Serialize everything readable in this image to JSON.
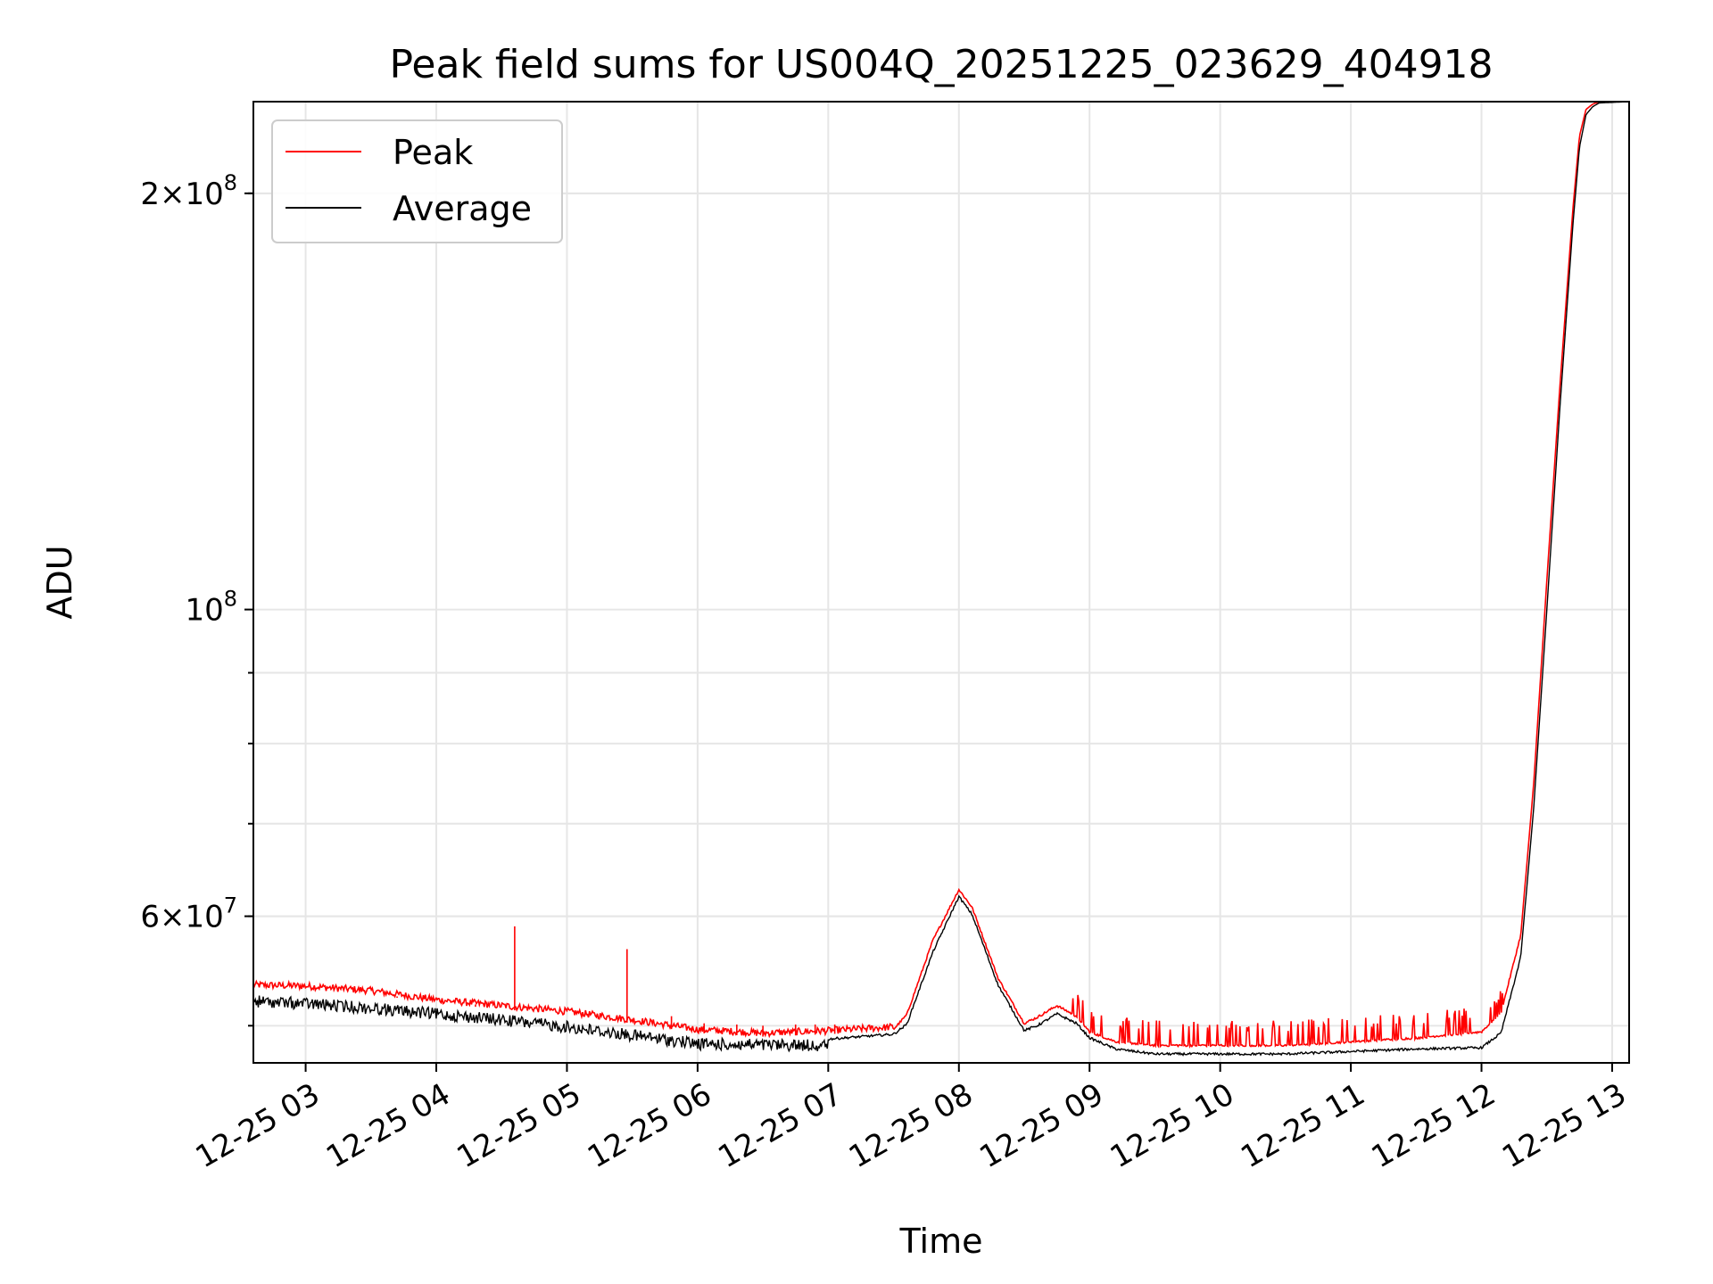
{
  "chart_data": {
    "type": "line",
    "title": "Peak field sums for US004Q_20251225_023629_404918",
    "xlabel": "Time",
    "ylabel": "ADU",
    "yscale": "log",
    "ylim": [
      47000000,
      233000000
    ],
    "xlim": [
      2.6,
      13.13
    ],
    "grid": true,
    "legend_position": "upper-left",
    "x_ticks": [
      {
        "value": 3,
        "label": "12-25 03"
      },
      {
        "value": 4,
        "label": "12-25 04"
      },
      {
        "value": 5,
        "label": "12-25 05"
      },
      {
        "value": 6,
        "label": "12-25 06"
      },
      {
        "value": 7,
        "label": "12-25 07"
      },
      {
        "value": 8,
        "label": "12-25 08"
      },
      {
        "value": 9,
        "label": "12-25 09"
      },
      {
        "value": 10,
        "label": "12-25 10"
      },
      {
        "value": 11,
        "label": "12-25 11"
      },
      {
        "value": 12,
        "label": "12-25 12"
      },
      {
        "value": 13,
        "label": "12-25 13"
      }
    ],
    "y_major_ticks": [
      {
        "value": 60000000,
        "base": "6×10",
        "exp": "7"
      },
      {
        "value": 100000000,
        "base": "10",
        "exp": "8"
      },
      {
        "value": 200000000,
        "base": "2×10",
        "exp": "8"
      }
    ],
    "y_minor_ticks": [
      50000000,
      60000000,
      70000000,
      80000000,
      90000000,
      200000000
    ],
    "series": [
      {
        "name": "Peak",
        "color": "#ff0000",
        "x": [
          2.6,
          3.0,
          3.5,
          4.0,
          4.5,
          5.0,
          5.5,
          6.0,
          6.5,
          7.0,
          7.5,
          7.6,
          7.8,
          8.0,
          8.1,
          8.3,
          8.5,
          8.6,
          8.75,
          8.9,
          9.0,
          9.2,
          9.5,
          10.0,
          10.5,
          11.0,
          11.5,
          12.0,
          12.15,
          12.3,
          12.4,
          12.5,
          12.6,
          12.7,
          12.75,
          12.8,
          12.85,
          12.9,
          13.13
        ],
        "y": [
          53200000,
          53100000,
          52700000,
          51900000,
          51400000,
          50900000,
          50200000,
          49400000,
          49100000,
          49300000,
          49600000,
          50800000,
          57500000,
          62600000,
          60800000,
          54000000,
          50100000,
          50600000,
          51600000,
          50700000,
          49400000,
          48600000,
          48300000,
          48300000,
          48300000,
          48600000,
          48900000,
          49400000,
          51000000,
          58000000,
          75000000,
          105000000,
          145000000,
          195000000,
          220000000,
          230000000,
          232000000,
          233000000,
          233000000
        ],
        "spikes": [
          {
            "x": 4.6,
            "y": 59000000
          },
          {
            "x": 5.46,
            "y": 56800000
          },
          {
            "x": 3.7,
            "y": 52500000
          },
          {
            "x": 4.3,
            "y": 51800000
          },
          {
            "x": 5.8,
            "y": 50800000
          },
          {
            "x": 6.05,
            "y": 50200000
          },
          {
            "x": 6.3,
            "y": 50100000
          },
          {
            "x": 6.5,
            "y": 50000000
          },
          {
            "x": 6.75,
            "y": 50100000
          },
          {
            "x": 6.9,
            "y": 50100000
          },
          {
            "x": 7.05,
            "y": 50100000
          }
        ]
      },
      {
        "name": "Average",
        "color": "#000000",
        "x": [
          2.6,
          3.0,
          3.5,
          4.0,
          4.5,
          5.0,
          5.5,
          6.0,
          6.5,
          7.0,
          7.5,
          7.6,
          7.8,
          8.0,
          8.1,
          8.3,
          8.5,
          8.6,
          8.75,
          8.9,
          9.0,
          9.2,
          9.5,
          10.0,
          10.5,
          11.0,
          11.5,
          12.0,
          12.15,
          12.3,
          12.4,
          12.5,
          12.6,
          12.7,
          12.75,
          12.8,
          12.85,
          12.9,
          13.13
        ],
        "y": [
          52600000,
          52400000,
          52000000,
          51500000,
          51000000,
          50400000,
          49700000,
          49000000,
          48900000,
          48900000,
          49300000,
          50100000,
          56500000,
          62000000,
          60200000,
          53500000,
          49600000,
          50000000,
          51000000,
          50200000,
          49000000,
          48100000,
          47700000,
          47700000,
          47700000,
          47900000,
          48100000,
          48200000,
          49400000,
          56000000,
          72000000,
          100000000,
          140000000,
          190000000,
          216000000,
          228000000,
          231000000,
          232500000,
          233000000
        ]
      }
    ]
  }
}
